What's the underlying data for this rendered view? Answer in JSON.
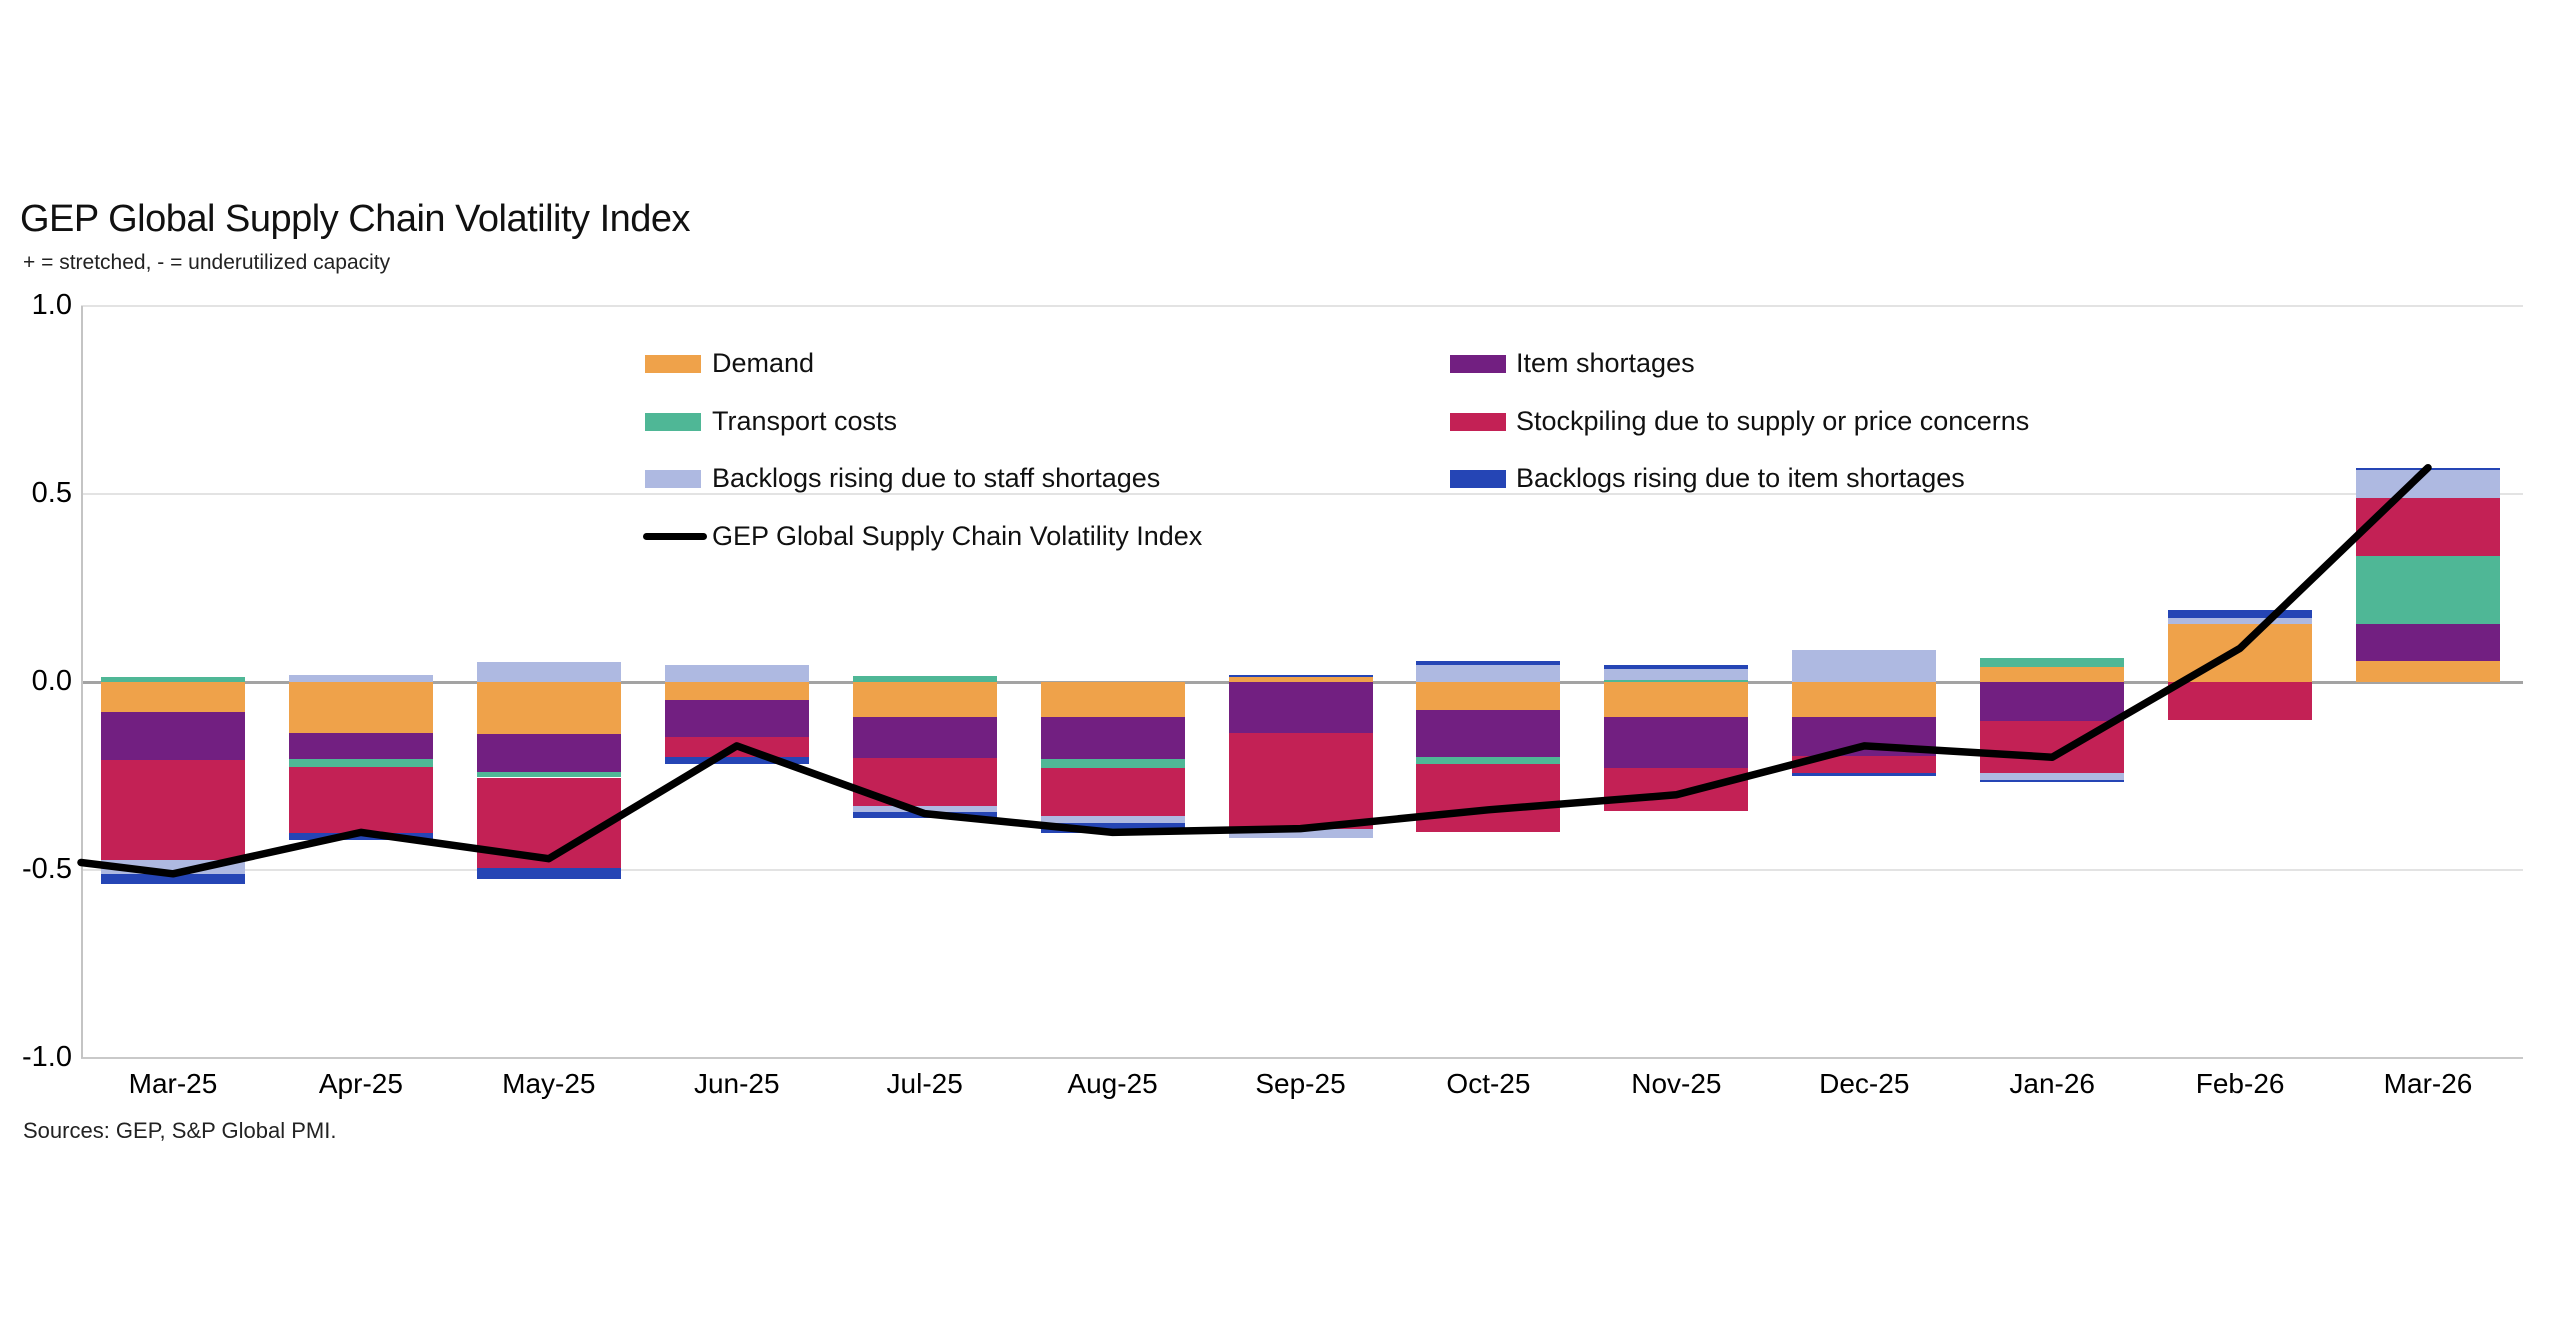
{
  "title": "GEP Global Supply Chain Volatility Index",
  "subtitle": "+ = stretched, - = underutilized capacity",
  "source": "Sources: GEP, S&P Global PMI.",
  "colors": {
    "demand": "#EFA24A",
    "item_shortages": "#721F81",
    "transport": "#4FB796",
    "stockpiling": "#C32155",
    "staff_backlogs": "#AEB9E1",
    "item_backlogs": "#2545B5",
    "index_line": "#000000",
    "grid_minor": "#E3E3E3",
    "grid_zero": "#A3A3A3"
  },
  "legend": {
    "left": [
      {
        "key": "demand",
        "label": "Demand"
      },
      {
        "key": "transport",
        "label": "Transport costs"
      },
      {
        "key": "staff_backlogs",
        "label": "Backlogs rising due to staff shortages"
      }
    ],
    "right": [
      {
        "key": "item_shortages",
        "label": "Item shortages"
      },
      {
        "key": "stockpiling",
        "label": "Stockpiling due to supply or price concerns"
      },
      {
        "key": "item_backlogs",
        "label": "Backlogs rising due to item shortages"
      }
    ],
    "line_label": "GEP Global Supply Chain Volatility Index"
  },
  "chart_data": {
    "type": "combo-stacked-bar-line",
    "title": "GEP Global Supply Chain Volatility Index",
    "subtitle": "+ = stretched, - = underutilized capacity",
    "ylim": [
      -1.0,
      1.0
    ],
    "y_ticks": [
      {
        "label": "1.0",
        "value": 1.0
      },
      {
        "label": "0.5",
        "value": 0.5
      },
      {
        "label": "0.0",
        "value": 0.0
      },
      {
        "label": "-0.5",
        "value": -0.5
      },
      {
        "label": "-1.0",
        "value": -1.0
      }
    ],
    "grid": "horizontal",
    "legend_position": "top-inside-two-columns",
    "categories": [
      "Mar-25",
      "Apr-25",
      "May-25",
      "Jun-25",
      "Jul-25",
      "Aug-25",
      "Sep-25",
      "Oct-25",
      "Nov-25",
      "Dec-25",
      "Jan-26",
      "Feb-26",
      "Mar-26"
    ],
    "stack_order": [
      "demand",
      "item_shortages",
      "transport",
      "stockpiling",
      "staff_backlogs",
      "item_backlogs"
    ],
    "series": [
      {
        "key": "demand",
        "name": "Demand",
        "values": [
          -0.08,
          -0.136,
          -0.139,
          -0.048,
          -0.092,
          -0.092,
          0.012,
          -0.075,
          -0.094,
          -0.092,
          0.04,
          0.155,
          0.055
        ]
      },
      {
        "key": "item_shortages",
        "name": "Item shortages",
        "values": [
          -0.128,
          -0.069,
          -0.101,
          -0.097,
          -0.11,
          -0.113,
          -0.136,
          -0.125,
          -0.134,
          -0.106,
          -0.103,
          0.0,
          0.099
        ]
      },
      {
        "key": "transport",
        "name": "Transport costs",
        "values": [
          0.012,
          -0.021,
          -0.014,
          0.0,
          0.016,
          -0.025,
          0.0,
          -0.018,
          0.004,
          0.0,
          0.023,
          0.0,
          0.18
        ]
      },
      {
        "key": "stockpiling",
        "name": "Stockpiling due to supply or price concerns",
        "values": [
          -0.265,
          -0.175,
          -0.24,
          -0.055,
          -0.128,
          -0.127,
          -0.255,
          -0.18,
          -0.115,
          -0.045,
          -0.138,
          -0.1,
          0.156
        ]
      },
      {
        "key": "staff_backlogs",
        "name": "Backlogs rising due to staff shortages",
        "values": [
          -0.038,
          0.018,
          0.052,
          0.044,
          -0.015,
          -0.018,
          -0.023,
          0.046,
          0.03,
          0.085,
          -0.02,
          0.016,
          0.073
        ]
      },
      {
        "key": "item_backlogs",
        "name": "Backlogs rising due to item shortages",
        "values": [
          -0.026,
          -0.019,
          -0.029,
          -0.018,
          -0.018,
          -0.026,
          0.006,
          0.011,
          0.009,
          -0.008,
          -0.006,
          0.021,
          0.005
        ]
      }
    ],
    "line": {
      "name": "GEP Global Supply Chain Volatility Index",
      "lead_in_value_at_left_edge": -0.48,
      "values": [
        -0.51,
        -0.4,
        -0.47,
        -0.17,
        -0.35,
        -0.4,
        -0.39,
        -0.34,
        -0.3,
        -0.17,
        -0.2,
        0.09,
        0.57
      ]
    }
  }
}
